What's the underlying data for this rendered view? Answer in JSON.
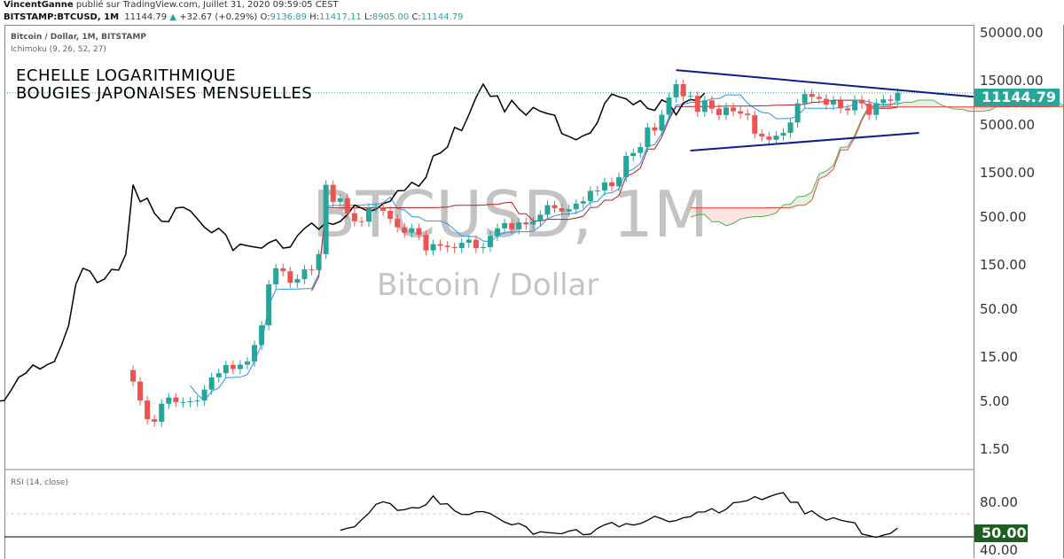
{
  "header": {
    "author": "VincentGanne",
    "published": "publié sur TradingView.com, Juillet 31, 2020 09:59:05 CEST",
    "symbol": "BITSTAMP:BTCUSD, 1M",
    "last": "11144.79",
    "change_arrow": "▲",
    "change": "+32.67 (+0.29%)",
    "o_label": "O:",
    "o": "9136.89",
    "h_label": "H:",
    "h": "11417.11",
    "l_label": "L:",
    "l": "8905.00",
    "c_label": "C:",
    "c": "11144.79"
  },
  "legend": {
    "title": "Bitcoin / Dollar, 1M, BITSTAMP",
    "indicator": "Ichimoku (9, 26, 52, 27)",
    "rsi": "RSI (14, close)"
  },
  "annotations": {
    "line1": "ECHELLE LOGARITHMIQUE",
    "line2": "BOUGIES JAPONAISES MENSUELLES"
  },
  "watermark": {
    "symbol": "BTCUSD, 1M",
    "name": "Bitcoin / Dollar"
  },
  "colors": {
    "up": "#26a69a",
    "down": "#ef5350",
    "tenkan": "#2196f3",
    "kijun": "#b71c1c",
    "chikou": "#000000",
    "trendline": "#0d1d8c",
    "rsi_tag": "#1b5e20"
  },
  "chart_data": [
    {
      "type": "candlestick",
      "scale": "log",
      "interval": "1M",
      "start": "2011-08",
      "end": "2020-07",
      "closes": [
        8.2,
        5.1,
        3.2,
        3.0,
        4.7,
        5.5,
        4.9,
        4.9,
        5.0,
        5.1,
        6.7,
        9.1,
        10.1,
        12.4,
        11.2,
        12.5,
        13.5,
        20.4,
        33.4,
        93,
        139,
        129,
        97,
        106,
        135,
        133,
        198,
        1120,
        732,
        800,
        550,
        450,
        445,
        627,
        640,
        585,
        478,
        387,
        338,
        378,
        320,
        217,
        254,
        244,
        236,
        230,
        263,
        284,
        230,
        236,
        313,
        377,
        430,
        368,
        437,
        416,
        448,
        531,
        673,
        624,
        573,
        608,
        700,
        742,
        963,
        970,
        1190,
        1080,
        1350,
        2300,
        2480,
        2870,
        4700,
        4340,
        6450,
        9950,
        13860,
        10220,
        10330,
        6930,
        9240,
        7500,
        6390,
        7730,
        7030,
        6630,
        6370,
        4020,
        3740,
        3450,
        3820,
        4100,
        5320,
        8560,
        10820,
        10080,
        9600,
        8290,
        9200,
        7560,
        7190,
        9350,
        8540,
        6420,
        8630,
        9450,
        9140,
        11144.79
      ],
      "first_open": 10.9,
      "y_ticks": [
        "50000.00",
        "15000.00",
        "5000.00",
        "1500.00",
        "500.00",
        "150.00",
        "50.00",
        "15.00",
        "5.00",
        "1.50"
      ],
      "last_price": "11144.79",
      "ichimoku": {
        "tenkan": 9,
        "kijun": 26,
        "span_b": 52,
        "displacement": 27
      },
      "trendlines": [
        {
          "from": {
            "month": "2017-12",
            "price": 19700
          },
          "to": {
            "month": "2021-11",
            "price": 10100
          }
        },
        {
          "from": {
            "month": "2018-02",
            "price": 2630
          },
          "to": {
            "month": "2020-10",
            "price": 4100
          }
        }
      ]
    },
    {
      "type": "line",
      "title": "RSI (14, close)",
      "period": 14,
      "y_ticks": [
        "80.00",
        "50.00",
        "40.00"
      ],
      "levels": [
        70,
        50
      ],
      "highlight": "50.00"
    }
  ]
}
